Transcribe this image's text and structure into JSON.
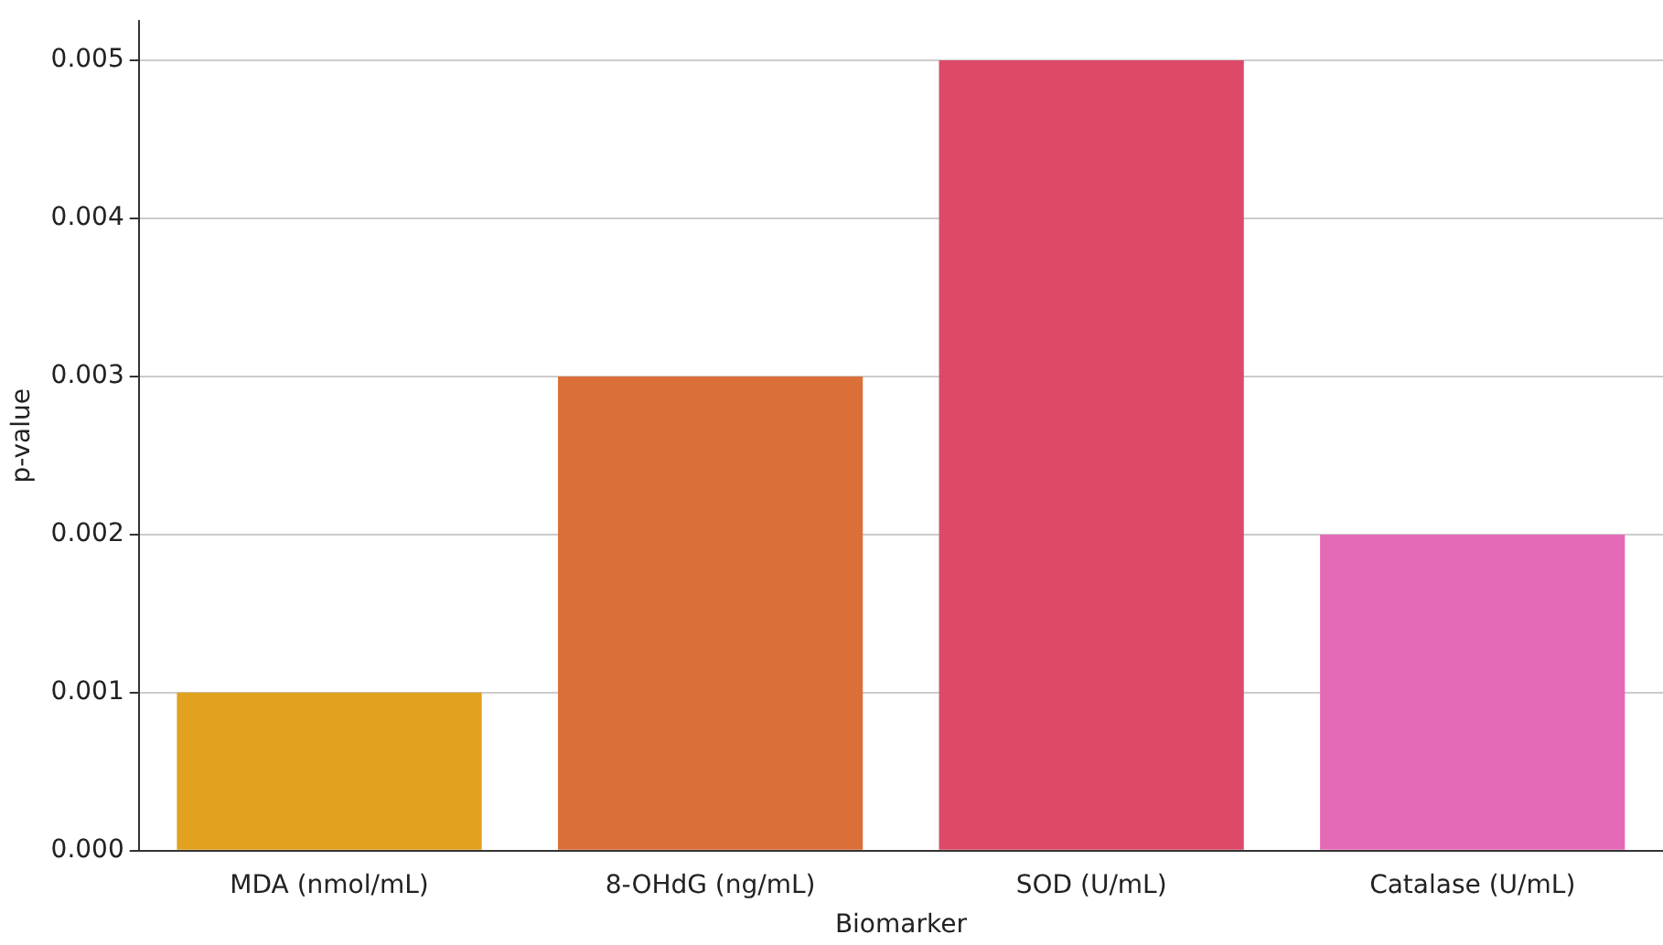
{
  "chart_data": {
    "type": "bar",
    "xlabel": "Biomarker",
    "ylabel": "p-value",
    "categories": [
      "MDA (nmol/mL)",
      "8-OHdG (ng/mL)",
      "SOD (U/mL)",
      "Catalase (U/mL)"
    ],
    "values": [
      0.001,
      0.003,
      0.005,
      0.002
    ],
    "colors": [
      "#e0a21f",
      "#db6f3a",
      "#dc4a68",
      "#e46ab8"
    ],
    "ylim": [
      0,
      0.00525
    ],
    "yticks": [
      {
        "value": 0,
        "label": "0.000"
      },
      {
        "value": 0.001,
        "label": "0.001"
      },
      {
        "value": 0.002,
        "label": "0.002"
      },
      {
        "value": 0.003,
        "label": "0.003"
      },
      {
        "value": 0.004,
        "label": "0.004"
      },
      {
        "value": 0.005,
        "label": "0.005"
      }
    ],
    "grid": "y"
  }
}
